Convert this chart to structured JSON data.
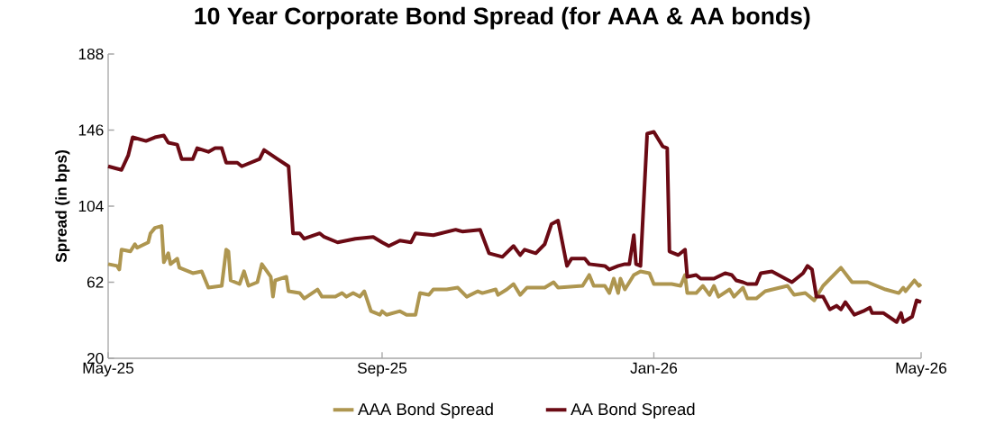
{
  "chart_data": {
    "type": "line",
    "title": "10 Year Corporate Bond Spread (for AAA & AA bonds)",
    "ylabel": "Spread (in bps)",
    "xlim": [
      "2025-05-01",
      "2026-05-01"
    ],
    "xticks": [
      {
        "value": "2025-05-01",
        "label": "May-25"
      },
      {
        "value": "2025-09-01",
        "label": "Sep-25"
      },
      {
        "value": "2026-01-01",
        "label": "Jan-26"
      },
      {
        "value": "2026-05-01",
        "label": "May-26"
      }
    ],
    "ylim": [
      20,
      188
    ],
    "yticks": [
      20,
      62,
      104,
      146,
      188
    ],
    "grid": false,
    "legend": "bottom",
    "marker": "none",
    "line_style": "solid",
    "series": [
      {
        "name": "AAA Bond Spread",
        "color": "#ae9650",
        "x": [
          "2025-05-01",
          "2025-05-05",
          "2025-05-06",
          "2025-05-07",
          "2025-05-11",
          "2025-05-13",
          "2025-05-14",
          "2025-05-19",
          "2025-05-20",
          "2025-05-22",
          "2025-05-25",
          "2025-05-26",
          "2025-05-28",
          "2025-05-29",
          "2025-06-01",
          "2025-06-02",
          "2025-06-08",
          "2025-06-12",
          "2025-06-15",
          "2025-06-21",
          "2025-06-23",
          "2025-06-24",
          "2025-06-25",
          "2025-06-29",
          "2025-07-01",
          "2025-07-03",
          "2025-07-07",
          "2025-07-09",
          "2025-07-13",
          "2025-07-14",
          "2025-07-15",
          "2025-07-20",
          "2025-07-21",
          "2025-07-26",
          "2025-07-28",
          "2025-08-03",
          "2025-08-05",
          "2025-08-11",
          "2025-08-14",
          "2025-08-16",
          "2025-08-19",
          "2025-08-22",
          "2025-08-24",
          "2025-08-27",
          "2025-08-31",
          "2025-09-01",
          "2025-09-03",
          "2025-09-09",
          "2025-09-12",
          "2025-09-16",
          "2025-09-18",
          "2025-09-22",
          "2025-09-24",
          "2025-09-30",
          "2025-10-05",
          "2025-10-09",
          "2025-10-14",
          "2025-10-16",
          "2025-10-22",
          "2025-10-23",
          "2025-10-27",
          "2025-10-30",
          "2025-11-02",
          "2025-11-05",
          "2025-11-13",
          "2025-11-17",
          "2025-11-19",
          "2025-11-30",
          "2025-12-03",
          "2025-12-05",
          "2025-12-10",
          "2025-12-12",
          "2025-12-14",
          "2025-12-16",
          "2025-12-17",
          "2025-12-19",
          "2025-12-23",
          "2025-12-26",
          "2025-12-30",
          "2026-01-01",
          "2026-01-09",
          "2026-01-13",
          "2026-01-15",
          "2026-01-16",
          "2026-01-20",
          "2026-01-23",
          "2026-01-26",
          "2026-01-28",
          "2026-01-30",
          "2026-02-04",
          "2026-02-06",
          "2026-02-10",
          "2026-02-12",
          "2026-02-16",
          "2026-02-20",
          "2026-03-02",
          "2026-03-05",
          "2026-03-10",
          "2026-03-14",
          "2026-03-18",
          "2026-03-26",
          "2026-03-31",
          "2026-04-07",
          "2026-04-15",
          "2026-04-21",
          "2026-04-23",
          "2026-04-24",
          "2026-04-28",
          "2026-04-30",
          "2026-05-01"
        ],
        "values": [
          72,
          71,
          69,
          80,
          79,
          83,
          81,
          84,
          89,
          92,
          93,
          73,
          78,
          72,
          75,
          70,
          67,
          68,
          59,
          60,
          80,
          79,
          63,
          61,
          68,
          60,
          62,
          72,
          65,
          54,
          63,
          65,
          57,
          56,
          53,
          58,
          54,
          54,
          56,
          54,
          56,
          54,
          57,
          46,
          44,
          46,
          44,
          46,
          44,
          44,
          56,
          55,
          58,
          58,
          59,
          54,
          57,
          56,
          58,
          55,
          58,
          61,
          55,
          59,
          59,
          62,
          59,
          60,
          66,
          60,
          60,
          56,
          64,
          56,
          64,
          58,
          66,
          68,
          67,
          61,
          61,
          60,
          66,
          56,
          56,
          60,
          55,
          60,
          54,
          58,
          54,
          59,
          53,
          53,
          57,
          60,
          55,
          56,
          52,
          60,
          70,
          62,
          62,
          58,
          56,
          59,
          57,
          63,
          60,
          61
        ]
      },
      {
        "name": "AA Bond Spread",
        "color": "#6b0a14",
        "x": [
          "2025-05-01",
          "2025-05-07",
          "2025-05-10",
          "2025-05-12",
          "2025-05-18",
          "2025-05-22",
          "2025-05-26",
          "2025-05-28",
          "2025-06-01",
          "2025-06-03",
          "2025-06-08",
          "2025-06-10",
          "2025-06-15",
          "2025-06-18",
          "2025-06-21",
          "2025-06-23",
          "2025-06-28",
          "2025-06-30",
          "2025-07-08",
          "2025-07-10",
          "2025-07-16",
          "2025-07-21",
          "2025-07-23",
          "2025-07-26",
          "2025-07-28",
          "2025-08-04",
          "2025-08-06",
          "2025-08-12",
          "2025-08-20",
          "2025-08-28",
          "2025-09-01",
          "2025-09-04",
          "2025-09-09",
          "2025-09-14",
          "2025-09-16",
          "2025-09-24",
          "2025-10-04",
          "2025-10-07",
          "2025-10-15",
          "2025-10-19",
          "2025-10-25",
          "2025-10-30",
          "2025-11-02",
          "2025-11-04",
          "2025-11-09",
          "2025-11-13",
          "2025-11-16",
          "2025-11-19",
          "2025-11-23",
          "2025-11-25",
          "2025-12-01",
          "2025-12-03",
          "2025-12-10",
          "2025-12-12",
          "2025-12-16",
          "2025-12-19",
          "2025-12-21",
          "2025-12-23",
          "2025-12-24",
          "2025-12-26",
          "2025-12-29",
          "2026-01-01",
          "2026-01-05",
          "2026-01-07",
          "2026-01-08",
          "2026-01-12",
          "2026-01-15",
          "2026-01-16",
          "2026-01-20",
          "2026-01-22",
          "2026-01-28",
          "2026-02-02",
          "2026-02-05",
          "2026-02-07",
          "2026-02-10",
          "2026-02-12",
          "2026-02-16",
          "2026-02-18",
          "2026-02-23",
          "2026-03-04",
          "2026-03-09",
          "2026-03-11",
          "2026-03-13",
          "2026-03-15",
          "2026-03-18",
          "2026-03-21",
          "2026-03-24",
          "2026-03-26",
          "2026-03-28",
          "2026-04-01",
          "2026-04-05",
          "2026-04-08",
          "2026-04-09",
          "2026-04-14",
          "2026-04-20",
          "2026-04-22",
          "2026-04-23",
          "2026-04-27",
          "2026-04-29",
          "2026-05-01"
        ],
        "values": [
          126,
          124,
          132,
          142,
          140,
          142,
          143,
          139,
          138,
          130,
          130,
          136,
          134,
          136,
          136,
          128,
          128,
          126,
          130,
          135,
          130,
          126,
          89,
          89,
          86,
          89,
          87,
          84,
          86,
          87,
          84,
          82,
          85,
          84,
          89,
          88,
          91,
          90,
          91,
          78,
          76,
          82,
          77,
          80,
          78,
          83,
          94,
          96,
          71,
          75,
          75,
          72,
          71,
          69,
          71,
          72,
          72,
          88,
          72,
          71,
          144,
          145,
          137,
          136,
          79,
          77,
          80,
          65,
          66,
          64,
          64,
          67,
          66,
          63,
          62,
          61,
          61,
          67,
          68,
          62,
          67,
          71,
          69,
          54,
          54,
          47,
          49,
          47,
          51,
          44,
          46,
          48,
          45,
          45,
          40,
          45,
          40,
          43,
          52,
          51
        ]
      }
    ]
  }
}
